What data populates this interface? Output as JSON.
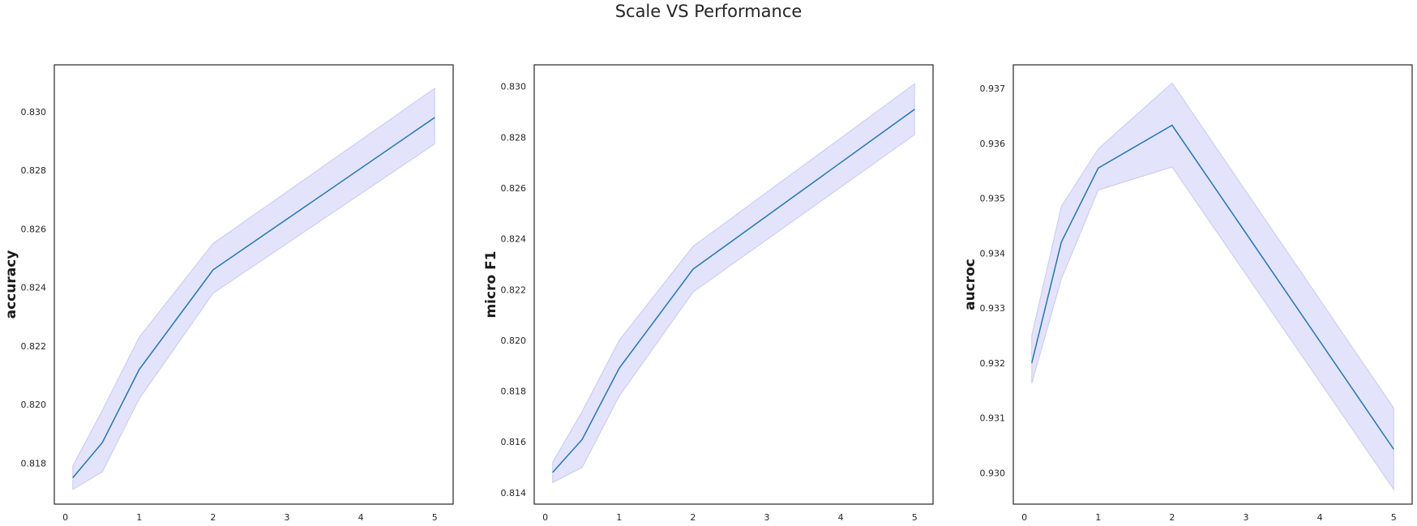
{
  "figure": {
    "title": "Scale VS Performance"
  },
  "style": {
    "line_color": "#1f77b4",
    "band_fill": "#e3e3fb",
    "band_edge": "#c8c8f4"
  },
  "chart_data": [
    {
      "type": "line",
      "name": "accuracy-panel",
      "title": "",
      "xlabel": "",
      "ylabel": "accuracy",
      "x": [
        0.1,
        0.5,
        1,
        2,
        5
      ],
      "values": [
        0.8175,
        0.8187,
        0.8212,
        0.8246,
        0.8298
      ],
      "ci_lower": [
        0.8171,
        0.8177,
        0.8202,
        0.8238,
        0.8289
      ],
      "ci_upper": [
        0.8179,
        0.8198,
        0.8223,
        0.8255,
        0.8308
      ],
      "xlim": [
        -0.15,
        5.25
      ],
      "ylim": [
        0.8166,
        0.8316
      ],
      "xticks": [
        0,
        1,
        2,
        3,
        4,
        5
      ],
      "xtick_labels": [
        "0",
        "1",
        "2",
        "3",
        "4",
        "5"
      ],
      "yticks": [
        0.818,
        0.82,
        0.822,
        0.824,
        0.826,
        0.828,
        0.83
      ],
      "ytick_labels": [
        "0.818",
        "0.820",
        "0.822",
        "0.824",
        "0.826",
        "0.828",
        "0.830"
      ],
      "grid": false,
      "legend": "none"
    },
    {
      "type": "line",
      "name": "micro-f1-panel",
      "title": "",
      "xlabel": "",
      "ylabel": "micro F1",
      "x": [
        0.1,
        0.5,
        1,
        2,
        5
      ],
      "values": [
        0.8148,
        0.8161,
        0.8189,
        0.8228,
        0.8291
      ],
      "ci_lower": [
        0.8144,
        0.815,
        0.8178,
        0.8219,
        0.8281
      ],
      "ci_upper": [
        0.8152,
        0.8172,
        0.82,
        0.8237,
        0.8301
      ],
      "xlim": [
        -0.15,
        5.25
      ],
      "ylim": [
        0.81355,
        0.83085
      ],
      "xticks": [
        0,
        1,
        2,
        3,
        4,
        5
      ],
      "xtick_labels": [
        "0",
        "1",
        "2",
        "3",
        "4",
        "5"
      ],
      "yticks": [
        0.814,
        0.816,
        0.818,
        0.82,
        0.822,
        0.824,
        0.826,
        0.828,
        0.83
      ],
      "ytick_labels": [
        "0.814",
        "0.816",
        "0.818",
        "0.820",
        "0.822",
        "0.824",
        "0.826",
        "0.828",
        "0.830"
      ],
      "grid": false,
      "legend": "none"
    },
    {
      "type": "line",
      "name": "aucroc-panel",
      "title": "",
      "xlabel": "",
      "ylabel": "aucroc",
      "x": [
        0.1,
        0.5,
        1,
        2,
        5
      ],
      "values": [
        0.932,
        0.9342,
        0.93555,
        0.93633,
        0.93043
      ],
      "ci_lower": [
        0.93163,
        0.93353,
        0.93515,
        0.93557,
        0.9297
      ],
      "ci_upper": [
        0.9325,
        0.93485,
        0.9359,
        0.9371,
        0.93118
      ],
      "xlim": [
        -0.15,
        5.25
      ],
      "ylim": [
        0.92943,
        0.93743
      ],
      "xticks": [
        0,
        1,
        2,
        3,
        4,
        5
      ],
      "xtick_labels": [
        "0",
        "1",
        "2",
        "3",
        "4",
        "5"
      ],
      "yticks": [
        0.93,
        0.931,
        0.932,
        0.933,
        0.934,
        0.935,
        0.936,
        0.937
      ],
      "ytick_labels": [
        "0.930",
        "0.931",
        "0.932",
        "0.933",
        "0.934",
        "0.935",
        "0.936",
        "0.937"
      ],
      "grid": false,
      "legend": "none"
    }
  ]
}
